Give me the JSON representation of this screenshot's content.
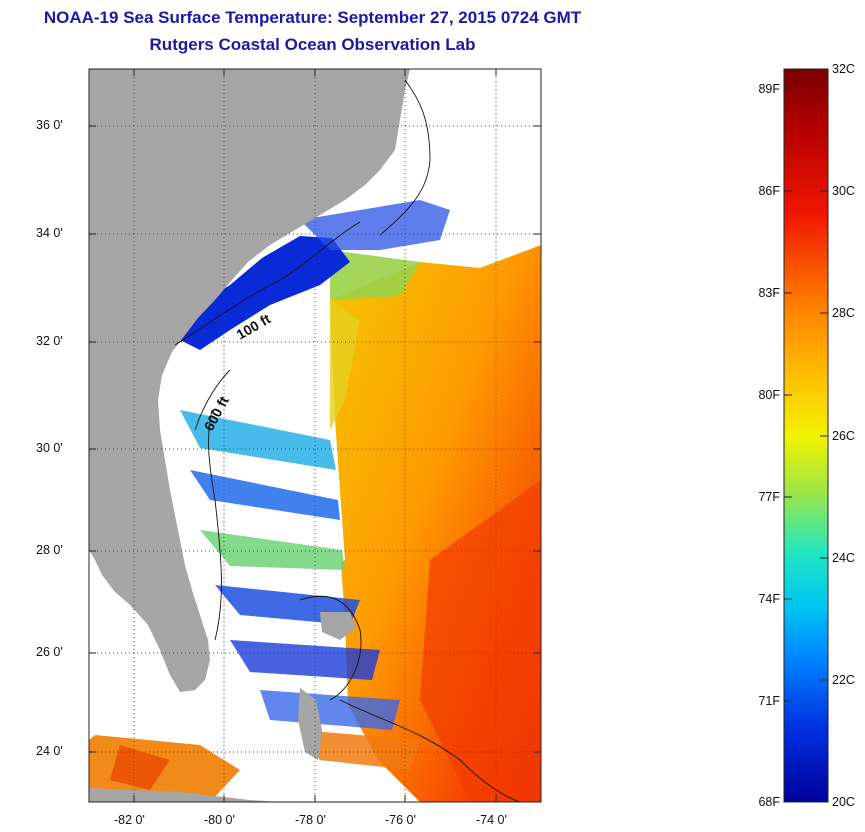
{
  "header": {
    "title": "NOAA-19 Sea Surface Temperature:  September 27, 2015 0724 GMT",
    "subtitle": "Rutgers Coastal Ocean Observation Lab"
  },
  "map": {
    "lat_labels": [
      "36 0'",
      "34 0'",
      "32 0'",
      "30 0'",
      "28 0'",
      "26 0'",
      "24 0'"
    ],
    "lon_labels": [
      "-82 0'",
      "-80 0'",
      "-78 0'",
      "-76 0'",
      "-74 0'"
    ],
    "lat_range": [
      23.0,
      37.2
    ],
    "lon_range": [
      -83.0,
      -73.0
    ],
    "contour_labels": [
      "100 ft",
      "600 ft"
    ],
    "colors": {
      "land": "#a6a6a6",
      "cloud": "#ffffff",
      "grid": "#444444"
    }
  },
  "colorbar": {
    "fahrenheit_labels": [
      "89F",
      "86F",
      "83F",
      "80F",
      "77F",
      "74F",
      "71F",
      "68F"
    ],
    "celsius_labels": [
      "32C",
      "30C",
      "28C",
      "26C",
      "24C",
      "22C",
      "20C"
    ],
    "range_c": [
      20,
      32
    ]
  }
}
